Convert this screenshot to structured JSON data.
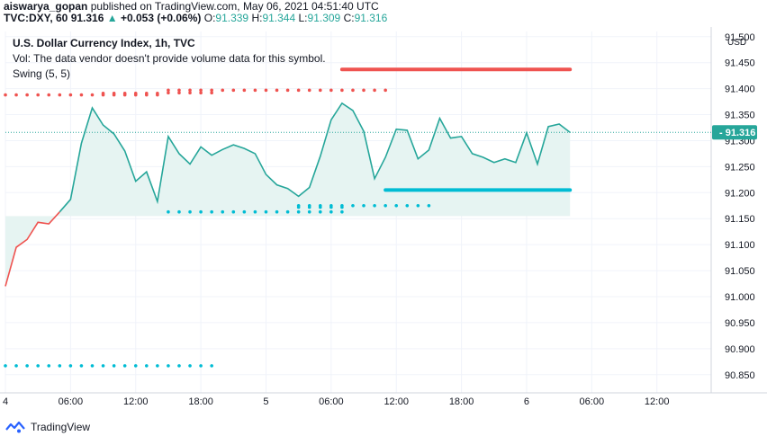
{
  "header": {
    "author": "aiswarya_gopan",
    "published": "published on TradingView.com, May 06, 2021 04:51:40 UTC"
  },
  "symbol_line": {
    "symbol": "TVC:DXY, 60",
    "price": "91.316",
    "change": "+0.053 (+0.06%)",
    "o_label": "O:",
    "o": "91.339",
    "h_label": "H:",
    "h": "91.344",
    "l_label": "L:",
    "l": "91.309",
    "c_label": "C:",
    "c": "91.316"
  },
  "legend": {
    "title": "U.S. Dollar Currency Index, 1h, TVC",
    "vol_note": "Vol: The data vendor doesn't provide volume data for this symbol.",
    "indicator": "Swing (5, 5)"
  },
  "footer": {
    "brand": "TradingView"
  },
  "colors": {
    "line": "#26a69a",
    "line_red": "#ef5350",
    "area": "#e6f4f2",
    "dots_red": "#ef5350",
    "dots_teal": "#00bcd4",
    "level_red": "#ef5350",
    "level_teal": "#00bcd4",
    "grid": "#f0f3fa",
    "axis_text": "#131722",
    "price_badge": "#26a69a"
  },
  "chart_data": {
    "type": "line",
    "title": "U.S. Dollar Currency Index, 1h, TVC",
    "currency": "USD",
    "y_ticks": [
      "91.500",
      "91.450",
      "91.400",
      "91.350",
      "91.300",
      "91.250",
      "91.200",
      "91.150",
      "91.100",
      "91.050",
      "91.000",
      "90.950",
      "90.900",
      "90.850"
    ],
    "x_ticks": [
      "4",
      "06:00",
      "12:00",
      "18:00",
      "5",
      "06:00",
      "12:00",
      "18:00",
      "6",
      "06:00",
      "12:00"
    ],
    "x_tick_hours": [
      0,
      6,
      12,
      18,
      24,
      30,
      36,
      42,
      48,
      54,
      60
    ],
    "ylim": [
      90.815,
      91.51
    ],
    "xlim": [
      0,
      65
    ],
    "last_price": "91.316",
    "series": [
      {
        "points": [
          {
            "x": 0.0,
            "y": 91.02
          },
          {
            "x": 1.0,
            "y": 91.095
          },
          {
            "x": 2.0,
            "y": 91.11
          },
          {
            "x": 3.0,
            "y": 91.143
          },
          {
            "x": 4.0,
            "y": 91.14
          },
          {
            "x": 5.0,
            "y": 91.163
          },
          {
            "x": 6.0,
            "y": 91.187
          },
          {
            "x": 7.0,
            "y": 91.295
          },
          {
            "x": 8.0,
            "y": 91.363
          },
          {
            "x": 9.0,
            "y": 91.33
          },
          {
            "x": 10.0,
            "y": 91.313
          },
          {
            "x": 11.0,
            "y": 91.28
          },
          {
            "x": 12.0,
            "y": 91.222
          },
          {
            "x": 13.0,
            "y": 91.24
          },
          {
            "x": 14.0,
            "y": 91.183
          },
          {
            "x": 15.0,
            "y": 91.308
          },
          {
            "x": 16.0,
            "y": 91.275
          },
          {
            "x": 17.0,
            "y": 91.255
          },
          {
            "x": 18.0,
            "y": 91.288
          },
          {
            "x": 19.0,
            "y": 91.272
          },
          {
            "x": 20.0,
            "y": 91.283
          },
          {
            "x": 21.0,
            "y": 91.292
          },
          {
            "x": 22.0,
            "y": 91.285
          },
          {
            "x": 23.0,
            "y": 91.275
          },
          {
            "x": 24.0,
            "y": 91.235
          },
          {
            "x": 25.0,
            "y": 91.215
          },
          {
            "x": 26.0,
            "y": 91.208
          },
          {
            "x": 27.0,
            "y": 91.193
          },
          {
            "x": 28.0,
            "y": 91.21
          },
          {
            "x": 29.0,
            "y": 91.27
          },
          {
            "x": 30.0,
            "y": 91.34
          },
          {
            "x": 31.0,
            "y": 91.372
          },
          {
            "x": 32.0,
            "y": 91.358
          },
          {
            "x": 33.0,
            "y": 91.318
          },
          {
            "x": 34.0,
            "y": 91.227
          },
          {
            "x": 35.0,
            "y": 91.268
          },
          {
            "x": 36.0,
            "y": 91.322
          },
          {
            "x": 37.0,
            "y": 91.32
          },
          {
            "x": 38.0,
            "y": 91.265
          },
          {
            "x": 39.0,
            "y": 91.282
          },
          {
            "x": 40.0,
            "y": 91.343
          },
          {
            "x": 41.0,
            "y": 91.305
          },
          {
            "x": 42.0,
            "y": 91.308
          },
          {
            "x": 43.0,
            "y": 91.275
          },
          {
            "x": 44.0,
            "y": 91.268
          },
          {
            "x": 45.0,
            "y": 91.258
          },
          {
            "x": 46.0,
            "y": 91.265
          },
          {
            "x": 47.0,
            "y": 91.258
          },
          {
            "x": 48.0,
            "y": 91.315
          },
          {
            "x": 49.0,
            "y": 91.255
          },
          {
            "x": 50.0,
            "y": 91.327
          },
          {
            "x": 51.0,
            "y": 91.332
          },
          {
            "x": 52.0,
            "y": 91.316
          }
        ]
      }
    ],
    "swing_high_dots": [
      {
        "x_from": 0,
        "x_to": 14,
        "y": 91.388
      },
      {
        "x_from": 9,
        "x_to": 14,
        "y": 91.391
      },
      {
        "x_from": 15,
        "x_to": 35,
        "y": 91.397
      },
      {
        "x_from": 15,
        "x_to": 19,
        "y": 91.392
      }
    ],
    "swing_low_dots": [
      {
        "x_from": 0,
        "x_to": 19,
        "y": 90.867
      },
      {
        "x_from": 15,
        "x_to": 31,
        "y": 91.163
      },
      {
        "x_from": 27,
        "x_to": 31,
        "y": 91.172
      },
      {
        "x_from": 27,
        "x_to": 39,
        "y": 91.175
      }
    ],
    "levels": [
      {
        "x_from": 31,
        "x_to": 52,
        "y": 91.437,
        "color": "red"
      },
      {
        "x_from": 35,
        "x_to": 52,
        "y": 91.205,
        "color": "teal"
      }
    ]
  }
}
